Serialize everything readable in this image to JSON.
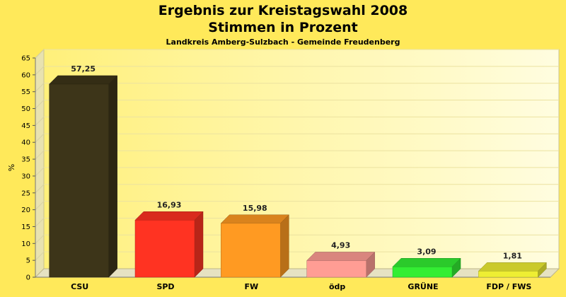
{
  "chart_data": {
    "type": "bar",
    "title": "Ergebnis zur Kreistagswahl 2008",
    "subtitle": "Stimmen in Prozent",
    "caption": "Landkreis Amberg-Sulzbach - Gemeinde Freudenberg",
    "ylabel": "%",
    "ylim": [
      0,
      65
    ],
    "yticks": [
      0,
      5,
      10,
      15,
      20,
      25,
      30,
      35,
      40,
      45,
      50,
      55,
      60,
      65
    ],
    "grid": true,
    "categories": [
      "CSU",
      "SPD",
      "FW",
      "ödp",
      "GRÜNE",
      "FDP / FWS"
    ],
    "values": [
      57.25,
      16.93,
      15.98,
      4.93,
      3.09,
      1.81
    ],
    "value_labels": [
      "57,25",
      "16,93",
      "15,98",
      "4,93",
      "3,09",
      "1,81"
    ],
    "colors": [
      "#3d3519",
      "#ff3322",
      "#ff9a22",
      "#ff9d94",
      "#33ee33",
      "#eeee33"
    ],
    "background": "#ffe95a"
  }
}
